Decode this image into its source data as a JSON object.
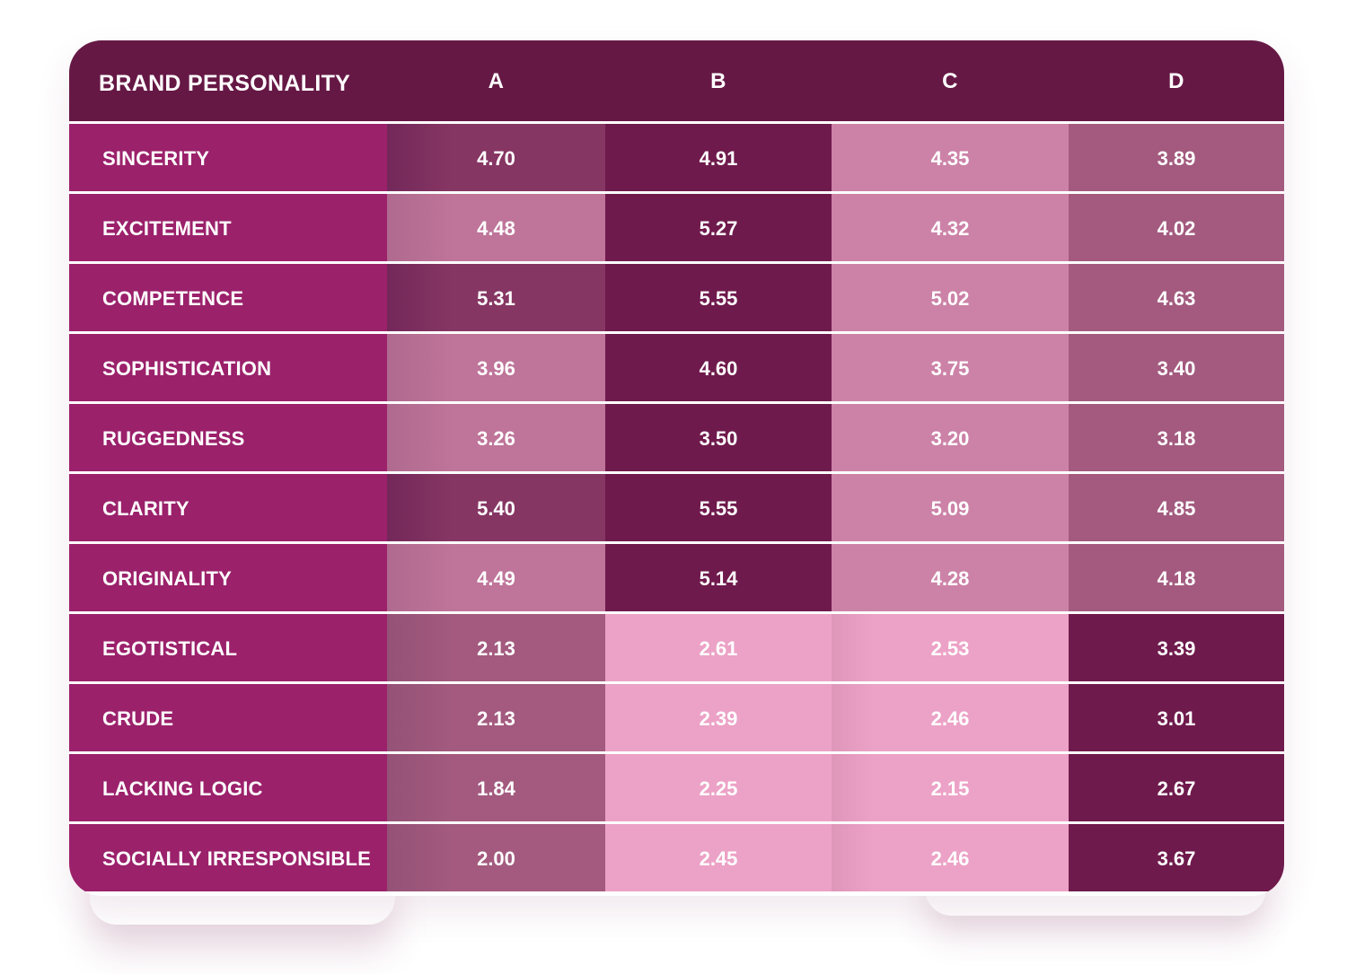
{
  "chart_data": {
    "type": "table",
    "header": {
      "row_label": "BRAND PERSONALITY",
      "columns": [
        "A",
        "B",
        "C",
        "D"
      ]
    },
    "rows": [
      {
        "label": "SINCERITY",
        "values": [
          "4.70",
          "4.91",
          "4.35",
          "3.89"
        ],
        "shades": [
          "dark",
          "darkest",
          "light",
          "mid"
        ]
      },
      {
        "label": "EXCITEMENT",
        "values": [
          "4.48",
          "5.27",
          "4.32",
          "4.02"
        ],
        "shades": [
          "light",
          "darkest",
          "light",
          "mid"
        ]
      },
      {
        "label": "COMPETENCE",
        "values": [
          "5.31",
          "5.55",
          "5.02",
          "4.63"
        ],
        "shades": [
          "dark",
          "darkest",
          "light",
          "mid"
        ]
      },
      {
        "label": "SOPHISTICATION",
        "values": [
          "3.96",
          "4.60",
          "3.75",
          "3.40"
        ],
        "shades": [
          "light",
          "darkest",
          "light",
          "mid"
        ]
      },
      {
        "label": "RUGGEDNESS",
        "values": [
          "3.26",
          "3.50",
          "3.20",
          "3.18"
        ],
        "shades": [
          "light",
          "darkest",
          "light",
          "mid"
        ]
      },
      {
        "label": "CLARITY",
        "values": [
          "5.40",
          "5.55",
          "5.09",
          "4.85"
        ],
        "shades": [
          "dark",
          "darkest",
          "light",
          "mid"
        ]
      },
      {
        "label": "ORIGINALITY",
        "values": [
          "4.49",
          "5.14",
          "4.28",
          "4.18"
        ],
        "shades": [
          "light",
          "darkest",
          "light",
          "mid"
        ]
      },
      {
        "label": "EGOTISTICAL",
        "values": [
          "2.13",
          "2.61",
          "2.53",
          "3.39"
        ],
        "shades": [
          "mid",
          "lightest",
          "lightest",
          "darkest"
        ]
      },
      {
        "label": "CRUDE",
        "values": [
          "2.13",
          "2.39",
          "2.46",
          "3.01"
        ],
        "shades": [
          "mid",
          "lightest",
          "lightest",
          "darkest"
        ]
      },
      {
        "label": "LACKING LOGIC",
        "values": [
          "1.84",
          "2.25",
          "2.15",
          "2.67"
        ],
        "shades": [
          "mid",
          "lightest",
          "lightest",
          "darkest"
        ]
      },
      {
        "label": "SOCIALLY IRRESPONSIBLE",
        "values": [
          "2.00",
          "2.45",
          "2.46",
          "3.67"
        ],
        "shades": [
          "mid",
          "lightest",
          "lightest",
          "darkest"
        ]
      }
    ],
    "colors": {
      "header_bg": "#661845",
      "label_bg": "#9b216b",
      "darkest": "#6f1a4c",
      "dark": "#863663",
      "mid": "#a35a7e",
      "light_a": "#bf7499",
      "light_c": "#cc82a7",
      "lightest": "#eca2c6",
      "row_separator": "#ffffff"
    }
  }
}
